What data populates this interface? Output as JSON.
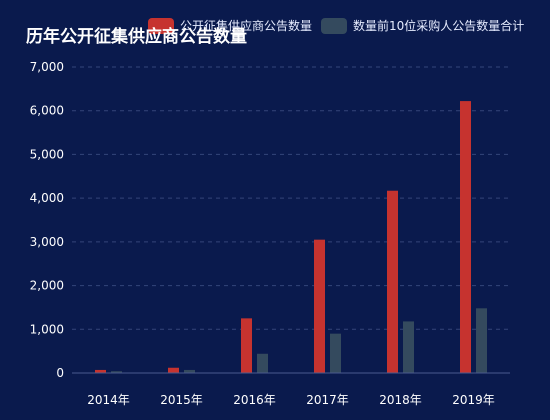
{
  "chart_data": {
    "type": "bar",
    "title": "历年公开征集供应商公告数量",
    "categories": [
      "2014年",
      "2015年",
      "2016年",
      "2017年",
      "2018年",
      "2019年"
    ],
    "series": [
      {
        "name": "公开征集供应商公告数量",
        "color": "#c6332f",
        "values": [
          70,
          120,
          1250,
          3050,
          4170,
          6220
        ]
      },
      {
        "name": "数量前10位采购人公告数量合计",
        "color": "#344a5e",
        "values": [
          40,
          70,
          440,
          900,
          1180,
          1480
        ]
      }
    ],
    "ylim": [
      0,
      7000
    ],
    "yticks": [
      0,
      1000,
      2000,
      3000,
      4000,
      5000,
      6000,
      7000
    ],
    "ytick_labels": [
      "0",
      "1,000",
      "2,000",
      "3,000",
      "4,000",
      "5,000",
      "6,000",
      "7,000"
    ],
    "grid": true,
    "legend": "top-right"
  }
}
